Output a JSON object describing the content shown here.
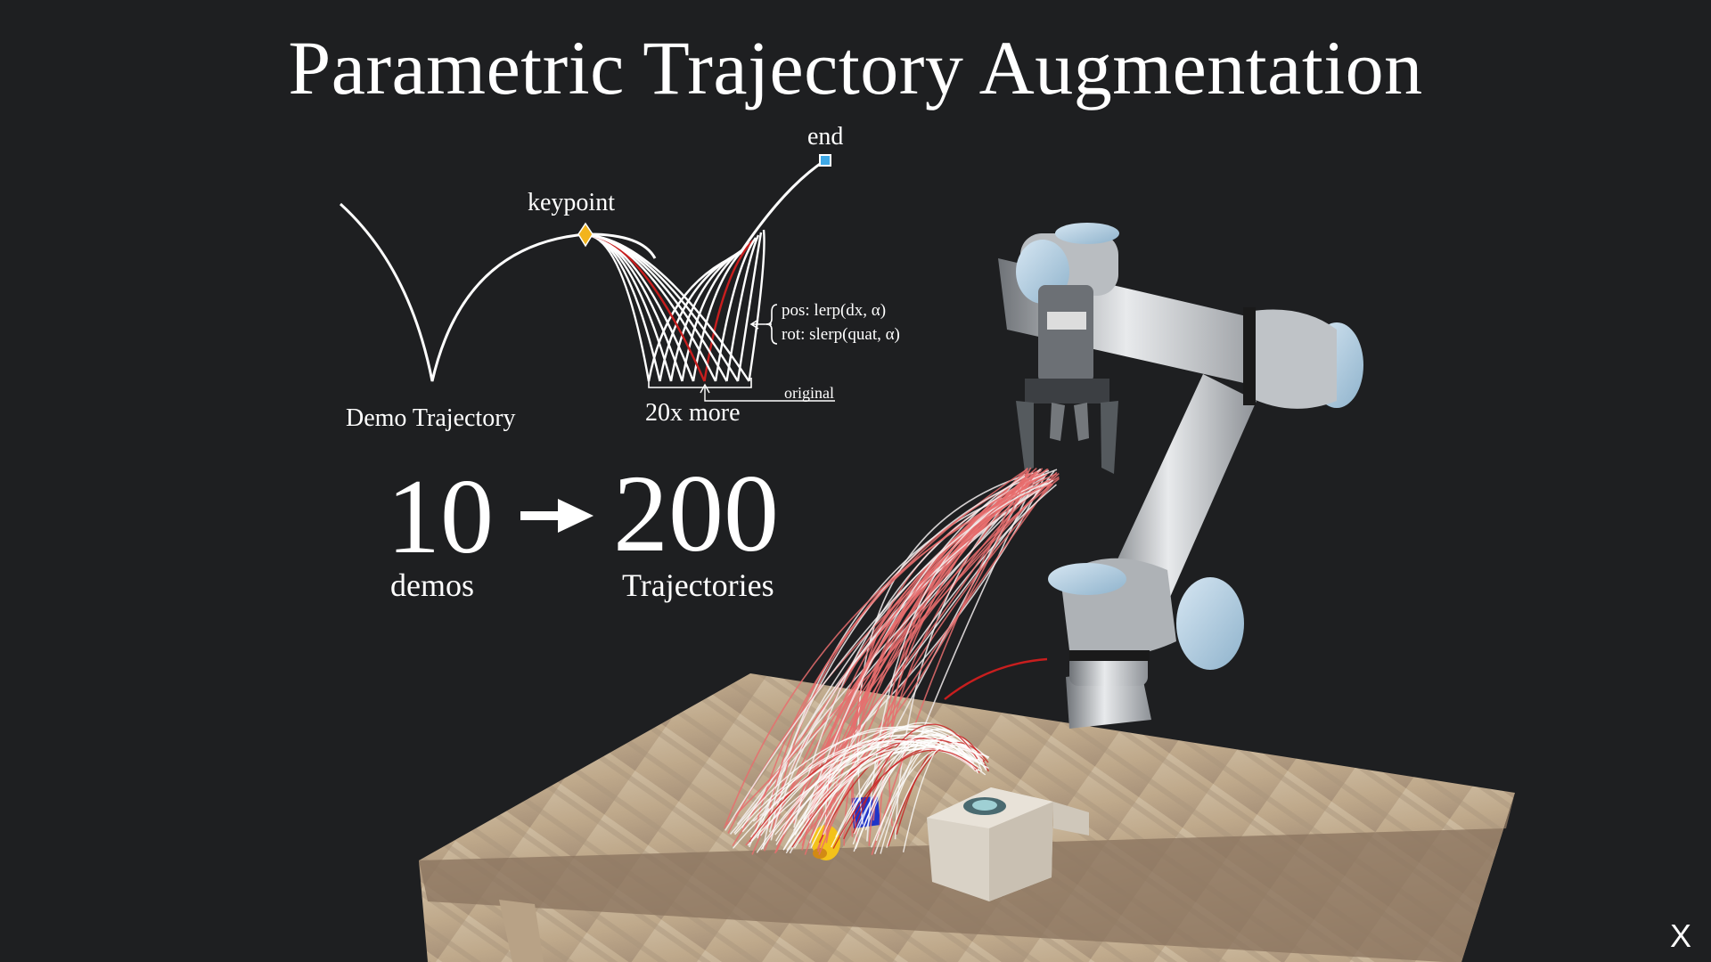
{
  "slide": {
    "title": "Parametric Trajectory Augmentation",
    "close_label": "X"
  },
  "diagram": {
    "keypoint_label": "keypoint",
    "end_label": "end",
    "demo_label": "Demo Trajectory",
    "more_label": "20x more",
    "original_label": "original",
    "pos_formula": "pos: lerp(dx, α)",
    "rot_formula": "rot: slerp(quat, α)",
    "colors": {
      "keypoint": "#f2b41c",
      "end": "#3ea8e6",
      "original": "#c81e1e",
      "line": "#ffffff"
    }
  },
  "stats": {
    "demos_count": "10",
    "demos_label": "demos",
    "traj_count": "200",
    "traj_label": "Trajectories"
  },
  "scene": {
    "description_icon": "robot-arm-scene"
  }
}
